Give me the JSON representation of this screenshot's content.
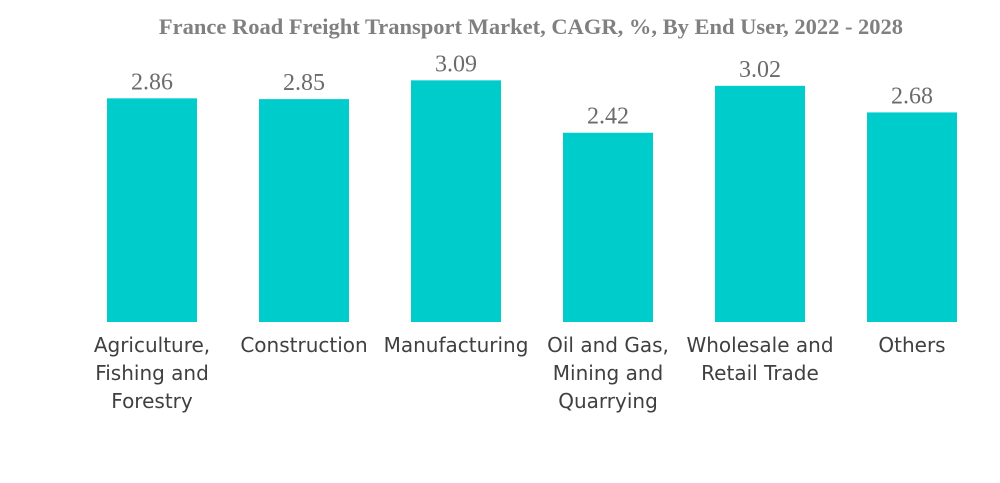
{
  "chart_data": {
    "type": "bar",
    "title": "France Road Freight Transport Market, CAGR, %, By End User, 2022 - 2028",
    "xlabel": "",
    "ylabel": "",
    "ylim": [
      0,
      3.12
    ],
    "grid": false,
    "bar_color": "#00CCCC",
    "categories": [
      [
        "Agriculture,",
        "Fishing and",
        "Forestry"
      ],
      [
        "Construction"
      ],
      [
        "Manufacturing"
      ],
      [
        "Oil and Gas,",
        "Mining and",
        "Quarrying"
      ],
      [
        "Wholesale and",
        "Retail Trade"
      ],
      [
        "Others"
      ]
    ],
    "values": [
      2.86,
      2.85,
      3.09,
      2.42,
      3.02,
      2.68
    ],
    "value_labels": [
      "2.86",
      "2.85",
      "3.09",
      "2.42",
      "3.02",
      "2.68"
    ]
  }
}
